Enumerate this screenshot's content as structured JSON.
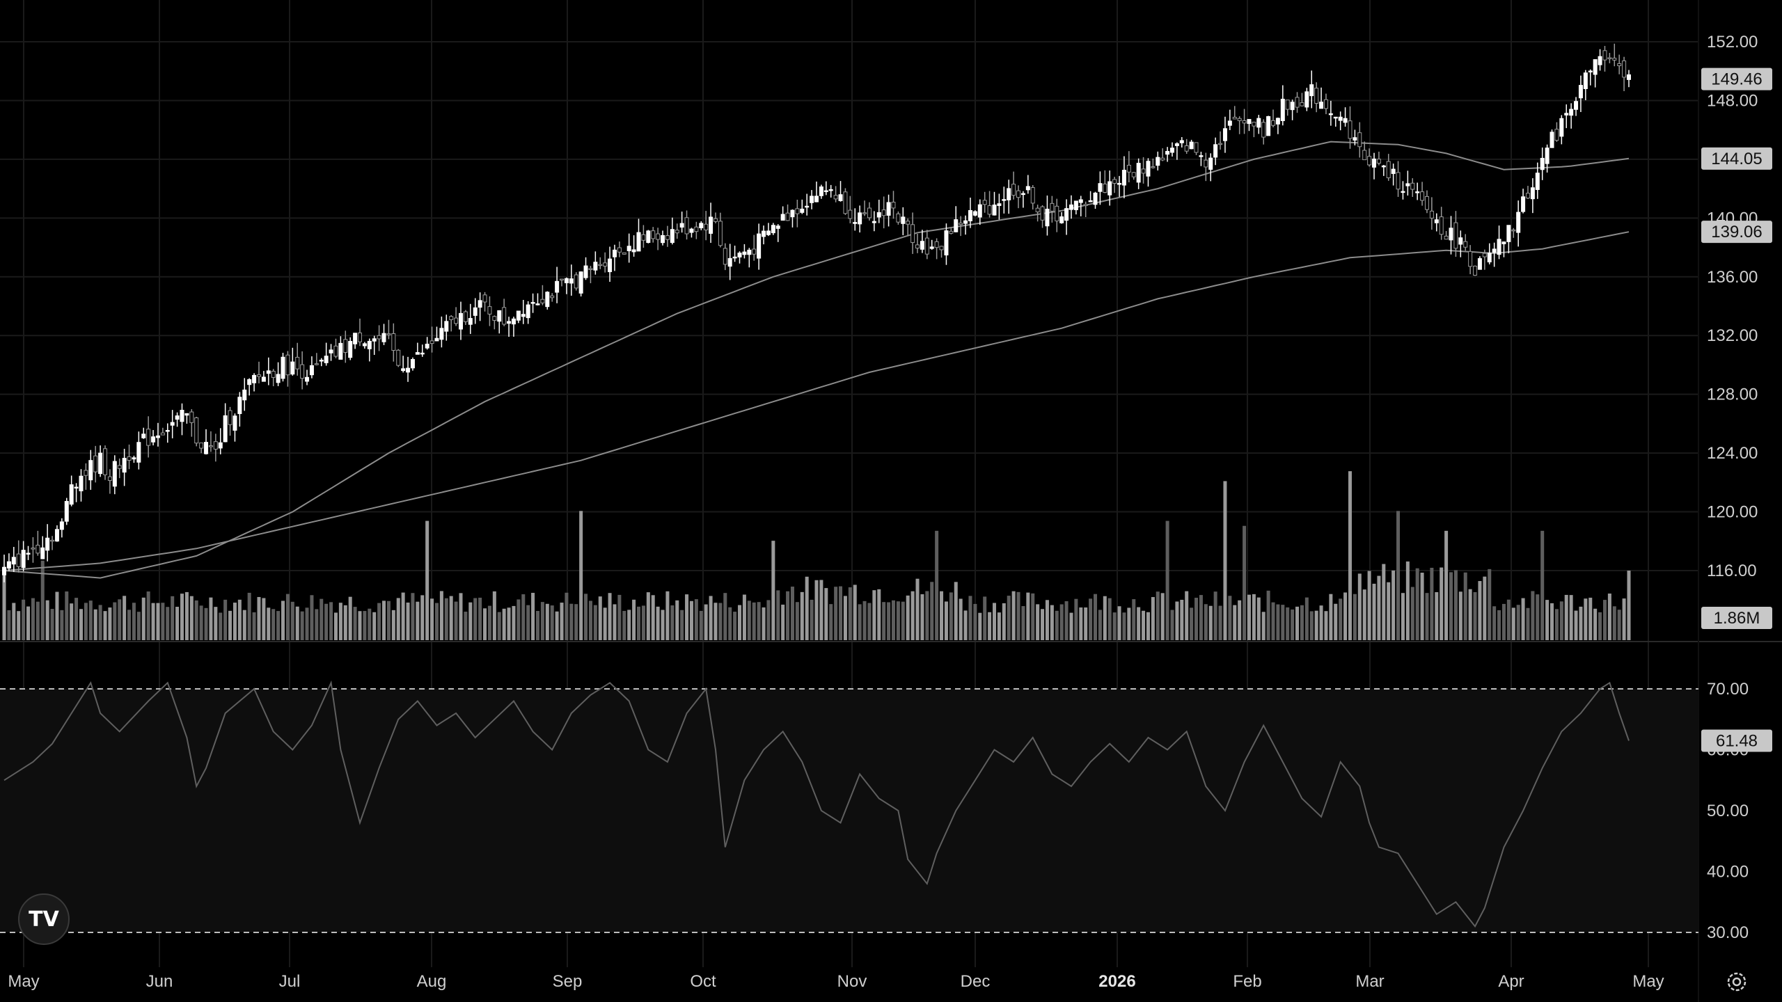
{
  "brand": {
    "logo_text": "TV"
  },
  "colors": {
    "background": "#000000",
    "rsi_band": "#0e0e0e",
    "candle_up": "#ffffff",
    "candle_down": "#9a9a9a",
    "ma": "#8c8c8c",
    "volume": "#a0a0a0",
    "rsi_line": "#5a5a5a",
    "price_tag_bg": "#c8c8c8"
  },
  "icons": {
    "settings": "gear-icon",
    "logo": "tradingview-logo-icon"
  },
  "chart_data": [
    {
      "type": "candlestick",
      "title": "",
      "price_ticks": [
        "152.00",
        "148.00",
        "144.00",
        "140.00",
        "136.00",
        "132.00",
        "128.00",
        "124.00",
        "120.00",
        "116.00"
      ],
      "ylim": [
        114,
        154
      ],
      "grid": true,
      "x_ticks": [
        {
          "label": "May",
          "bold": false
        },
        {
          "label": "Jun",
          "bold": false
        },
        {
          "label": "Jul",
          "bold": false
        },
        {
          "label": "Aug",
          "bold": false
        },
        {
          "label": "Sep",
          "bold": false
        },
        {
          "label": "Oct",
          "bold": false
        },
        {
          "label": "Nov",
          "bold": false
        },
        {
          "label": "Dec",
          "bold": false
        },
        {
          "label": "2026",
          "bold": true
        },
        {
          "label": "Feb",
          "bold": false
        },
        {
          "label": "Mar",
          "bold": false
        },
        {
          "label": "Apr",
          "bold": false
        },
        {
          "label": "May",
          "bold": false
        }
      ],
      "price_path": [
        [
          0,
          116
        ],
        [
          6,
          117.5
        ],
        [
          12,
          119
        ],
        [
          14,
          122
        ],
        [
          20,
          123.5
        ],
        [
          22,
          122.5
        ],
        [
          26,
          124
        ],
        [
          32,
          125.5
        ],
        [
          38,
          126.5
        ],
        [
          40,
          125
        ],
        [
          44,
          124
        ],
        [
          46,
          126
        ],
        [
          52,
          129
        ],
        [
          58,
          130
        ],
        [
          64,
          129.5
        ],
        [
          70,
          131
        ],
        [
          74,
          132
        ],
        [
          80,
          131.5
        ],
        [
          82,
          130
        ],
        [
          86,
          130.5
        ],
        [
          92,
          132.5
        ],
        [
          96,
          133.5
        ],
        [
          100,
          134
        ],
        [
          104,
          133
        ],
        [
          110,
          134.5
        ],
        [
          114,
          135
        ],
        [
          120,
          136
        ],
        [
          126,
          137.5
        ],
        [
          132,
          138.5
        ],
        [
          138,
          139
        ],
        [
          144,
          139.5
        ],
        [
          148,
          139.8
        ],
        [
          150,
          137
        ],
        [
          156,
          138
        ],
        [
          162,
          140
        ],
        [
          168,
          141.5
        ],
        [
          172,
          142
        ],
        [
          176,
          140.5
        ],
        [
          180,
          139.5
        ],
        [
          184,
          141
        ],
        [
          186,
          140
        ],
        [
          190,
          138.5
        ],
        [
          194,
          137.5
        ],
        [
          196,
          139
        ],
        [
          200,
          140
        ],
        [
          206,
          141
        ],
        [
          210,
          142
        ],
        [
          214,
          141.5
        ],
        [
          216,
          140
        ],
        [
          222,
          140.5
        ],
        [
          228,
          142
        ],
        [
          234,
          143
        ],
        [
          240,
          144
        ],
        [
          246,
          145
        ],
        [
          250,
          144
        ],
        [
          254,
          146
        ],
        [
          258,
          147
        ],
        [
          262,
          146
        ],
        [
          266,
          147.5
        ],
        [
          272,
          148.5
        ],
        [
          276,
          147.5
        ],
        [
          280,
          146
        ],
        [
          282,
          144.5
        ],
        [
          288,
          143
        ],
        [
          292,
          142
        ],
        [
          296,
          140.5
        ],
        [
          300,
          139
        ],
        [
          304,
          138
        ],
        [
          306,
          136.5
        ],
        [
          310,
          137.5
        ],
        [
          314,
          139.5
        ],
        [
          316,
          141
        ],
        [
          320,
          144
        ],
        [
          324,
          146.5
        ],
        [
          328,
          149
        ],
        [
          332,
          151
        ],
        [
          336,
          150
        ],
        [
          338,
          149.46
        ]
      ],
      "moving_averages": [
        {
          "label": "144.05",
          "points": [
            [
              0,
              116
            ],
            [
              20,
              115.5
            ],
            [
              40,
              117
            ],
            [
              60,
              120
            ],
            [
              80,
              124
            ],
            [
              100,
              127.5
            ],
            [
              120,
              130.5
            ],
            [
              140,
              133.5
            ],
            [
              160,
              136
            ],
            [
              180,
              138
            ],
            [
              190,
              139
            ],
            [
              200,
              139.5
            ],
            [
              220,
              140.5
            ],
            [
              240,
              142
            ],
            [
              260,
              144
            ],
            [
              276,
              145.2
            ],
            [
              290,
              145
            ],
            [
              300,
              144.4
            ],
            [
              312,
              143.3
            ],
            [
              325,
              143.5
            ],
            [
              338,
              144.05
            ]
          ]
        },
        {
          "label": "139.06",
          "points": [
            [
              0,
              116
            ],
            [
              20,
              116.5
            ],
            [
              40,
              117.5
            ],
            [
              60,
              119
            ],
            [
              80,
              120.5
            ],
            [
              100,
              122
            ],
            [
              120,
              123.5
            ],
            [
              140,
              125.5
            ],
            [
              160,
              127.5
            ],
            [
              180,
              129.5
            ],
            [
              200,
              131
            ],
            [
              220,
              132.5
            ],
            [
              240,
              134.5
            ],
            [
              260,
              136
            ],
            [
              280,
              137.3
            ],
            [
              300,
              137.8
            ],
            [
              310,
              137.6
            ],
            [
              320,
              137.9
            ],
            [
              338,
              139.06
            ]
          ]
        }
      ],
      "last_value_tags": [
        "149.46",
        "144.05",
        "139.06"
      ]
    },
    {
      "type": "bar",
      "series": [
        {
          "values": []
        }
      ],
      "peaks": [
        [
          0,
          1.4
        ],
        [
          8,
          1.6
        ],
        [
          88,
          2.4
        ],
        [
          120,
          2.6
        ],
        [
          160,
          2.0
        ],
        [
          194,
          2.2
        ],
        [
          242,
          2.4
        ],
        [
          254,
          3.2
        ],
        [
          258,
          2.3
        ],
        [
          280,
          3.4
        ],
        [
          290,
          2.6
        ],
        [
          300,
          2.2
        ],
        [
          320,
          2.2
        ],
        [
          338,
          1.4
        ]
      ],
      "last_value_tag": "1.86M"
    },
    {
      "type": "line",
      "name": "",
      "ticks": [
        "70.00",
        "60.00",
        "50.00",
        "40.00",
        "30.00"
      ],
      "ylim": [
        27.5,
        75
      ],
      "bands": [
        30,
        70
      ],
      "points": [
        [
          0,
          55
        ],
        [
          6,
          58
        ],
        [
          10,
          61
        ],
        [
          14,
          66
        ],
        [
          18,
          71
        ],
        [
          20,
          66
        ],
        [
          24,
          63
        ],
        [
          30,
          68
        ],
        [
          34,
          71
        ],
        [
          38,
          62
        ],
        [
          40,
          54
        ],
        [
          42,
          57
        ],
        [
          46,
          66
        ],
        [
          52,
          70
        ],
        [
          56,
          63
        ],
        [
          60,
          60
        ],
        [
          64,
          64
        ],
        [
          68,
          71
        ],
        [
          70,
          60
        ],
        [
          74,
          48
        ],
        [
          78,
          57
        ],
        [
          82,
          65
        ],
        [
          86,
          68
        ],
        [
          90,
          64
        ],
        [
          94,
          66
        ],
        [
          98,
          62
        ],
        [
          102,
          65
        ],
        [
          106,
          68
        ],
        [
          110,
          63
        ],
        [
          114,
          60
        ],
        [
          118,
          66
        ],
        [
          122,
          69
        ],
        [
          126,
          71
        ],
        [
          130,
          68
        ],
        [
          134,
          60
        ],
        [
          138,
          58
        ],
        [
          142,
          66
        ],
        [
          146,
          70
        ],
        [
          148,
          60
        ],
        [
          150,
          44
        ],
        [
          154,
          55
        ],
        [
          158,
          60
        ],
        [
          162,
          63
        ],
        [
          166,
          58
        ],
        [
          170,
          50
        ],
        [
          174,
          48
        ],
        [
          178,
          56
        ],
        [
          182,
          52
        ],
        [
          186,
          50
        ],
        [
          188,
          42
        ],
        [
          192,
          38
        ],
        [
          194,
          43
        ],
        [
          198,
          50
        ],
        [
          202,
          55
        ],
        [
          206,
          60
        ],
        [
          210,
          58
        ],
        [
          214,
          62
        ],
        [
          218,
          56
        ],
        [
          222,
          54
        ],
        [
          226,
          58
        ],
        [
          230,
          61
        ],
        [
          234,
          58
        ],
        [
          238,
          62
        ],
        [
          242,
          60
        ],
        [
          246,
          63
        ],
        [
          250,
          54
        ],
        [
          254,
          50
        ],
        [
          258,
          58
        ],
        [
          262,
          64
        ],
        [
          266,
          58
        ],
        [
          270,
          52
        ],
        [
          274,
          49
        ],
        [
          278,
          58
        ],
        [
          282,
          54
        ],
        [
          284,
          48
        ],
        [
          286,
          44
        ],
        [
          290,
          43
        ],
        [
          294,
          38
        ],
        [
          298,
          33
        ],
        [
          302,
          35
        ],
        [
          306,
          31
        ],
        [
          308,
          34
        ],
        [
          312,
          44
        ],
        [
          316,
          50
        ],
        [
          320,
          57
        ],
        [
          324,
          63
        ],
        [
          328,
          66
        ],
        [
          332,
          70
        ],
        [
          334,
          71
        ],
        [
          336,
          66
        ],
        [
          338,
          61.48
        ]
      ],
      "last_value_tag": "61.48"
    }
  ]
}
